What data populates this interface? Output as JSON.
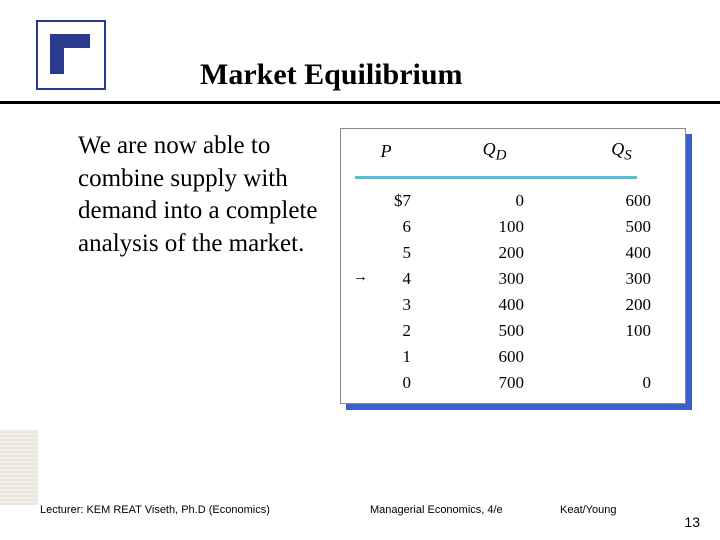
{
  "title": "Market Equilibrium",
  "body_text": "We are now able to combine supply with demand into a complete analysis of the market.",
  "table": {
    "headers": {
      "p": "P",
      "qd": "Q",
      "qd_sub": "D",
      "qs": "Q",
      "qs_sub": "S"
    },
    "equilibrium_index": 3,
    "rows": [
      {
        "p": "$7",
        "qd": "0",
        "qs": "600"
      },
      {
        "p": "6",
        "qd": "100",
        "qs": "500"
      },
      {
        "p": "5",
        "qd": "200",
        "qs": "400"
      },
      {
        "p": "4",
        "qd": "300",
        "qs": "300"
      },
      {
        "p": "3",
        "qd": "400",
        "qs": "200"
      },
      {
        "p": "2",
        "qd": "500",
        "qs": "100"
      },
      {
        "p": "1",
        "qd": "600",
        "qs": ""
      },
      {
        "p": "0",
        "qd": "700",
        "qs": "0"
      }
    ],
    "underline_color": "#4fc3d9",
    "shadow_color": "#3a5fcd"
  },
  "footer": {
    "lecturer": "Lecturer: KEM REAT Viseth, Ph.D (Economics)",
    "book": "Managerial Economics, 4/e",
    "authors": "Keat/Young",
    "page": "13"
  },
  "colors": {
    "logo_blue": "#2a3b8f",
    "title_black": "#000000"
  }
}
